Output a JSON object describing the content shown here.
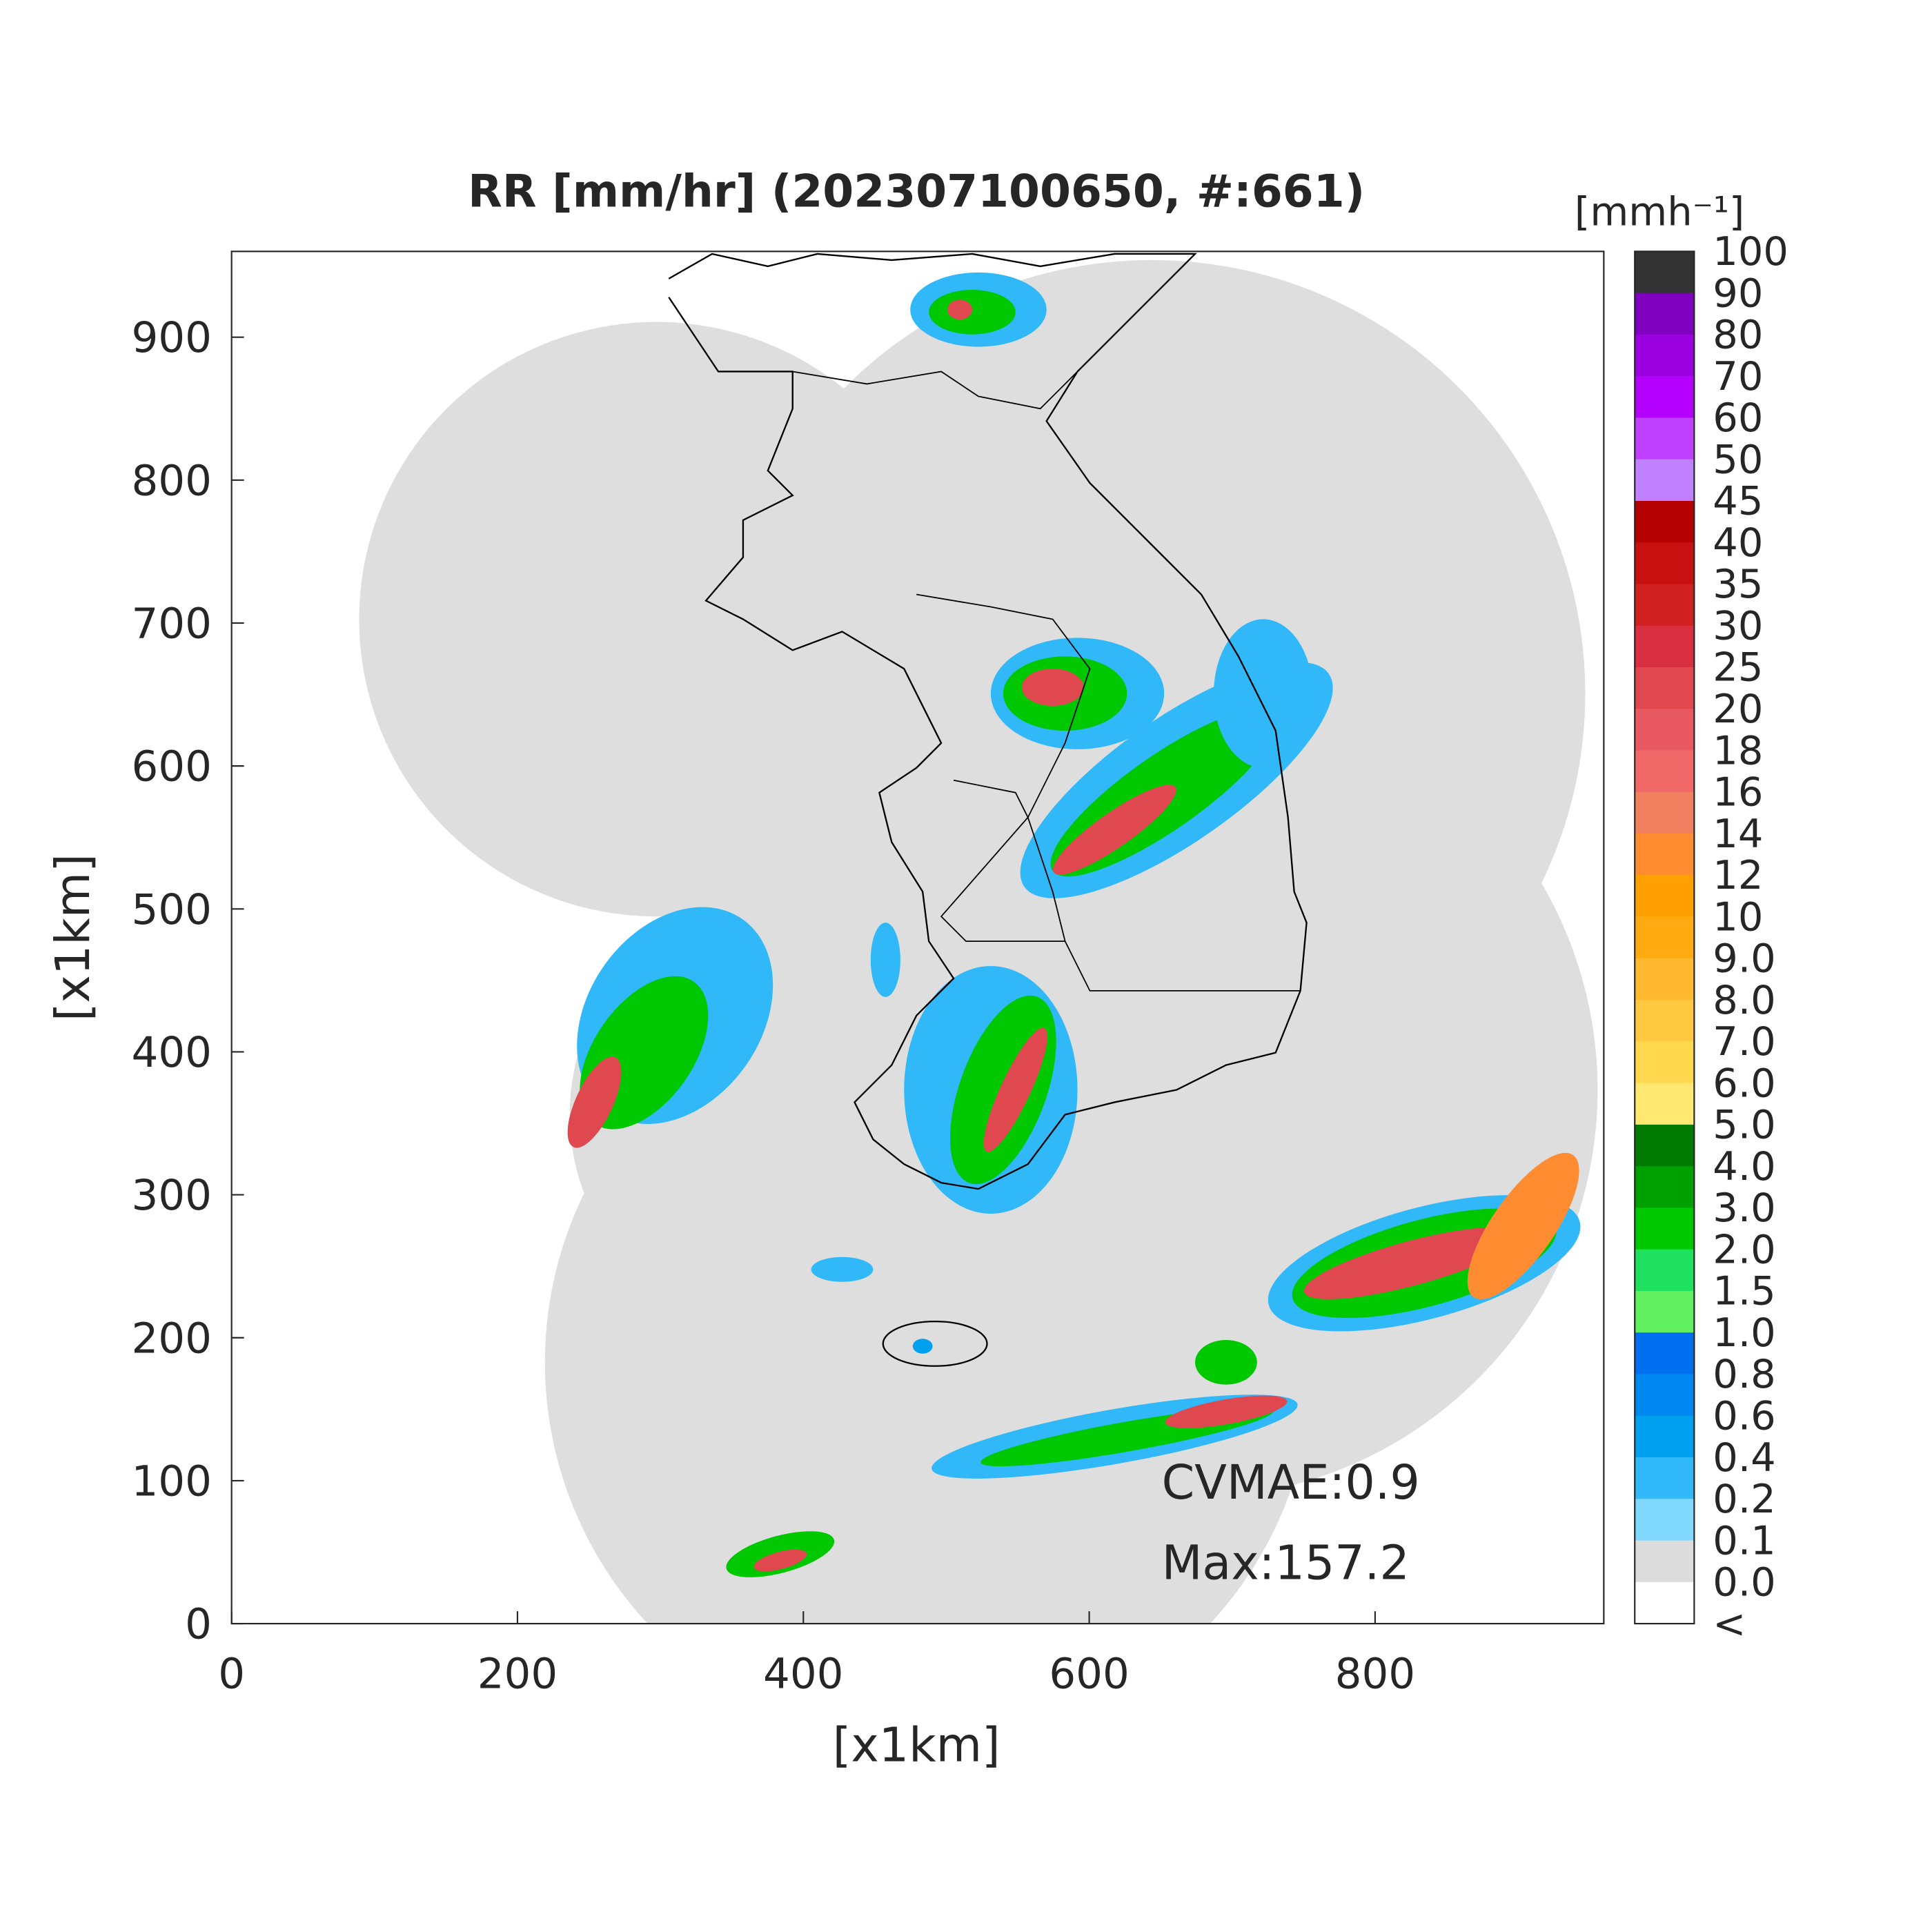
{
  "chart_data": {
    "type": "map",
    "title": "RR [mm/hr] (202307100650, #:661)",
    "xlabel": "[x1km]",
    "ylabel": "[x1km]",
    "xlim": [
      0,
      960
    ],
    "ylim": [
      0,
      960
    ],
    "xticks": [
      0,
      200,
      400,
      600,
      800
    ],
    "yticks": [
      0,
      100,
      200,
      300,
      400,
      500,
      600,
      700,
      800,
      900
    ],
    "annotations": [
      "CVMAE:0.9",
      "Max:157.2"
    ],
    "colorbar": {
      "title": "[mmh⁻¹]",
      "labels": [
        "100",
        "90",
        "80",
        "70",
        "60",
        "50",
        "45",
        "40",
        "35",
        "30",
        "25",
        "20",
        "18",
        "16",
        "14",
        "12",
        "10",
        "9.0",
        "8.0",
        "7.0",
        "6.0",
        "5.0",
        "4.0",
        "3.0",
        "2.0",
        "1.5",
        "1.0",
        "0.8",
        "0.6",
        "0.4",
        "0.2",
        "0.1",
        "0.0",
        "<"
      ],
      "colors": [
        "#333333",
        "#8000c0",
        "#9a00e0",
        "#b300ff",
        "#c040ff",
        "#c080ff",
        "#b40000",
        "#c81010",
        "#d02020",
        "#d83040",
        "#e04850",
        "#e85860",
        "#f06868",
        "#f08060",
        "#ff8c30",
        "#ffa000",
        "#ffaa10",
        "#ffb830",
        "#ffc840",
        "#ffd850",
        "#ffe870",
        "#007a00",
        "#00a000",
        "#00c800",
        "#20e060",
        "#60f060",
        "#0070f0",
        "#0088f0",
        "#00a0f0",
        "#30b8f8",
        "#80d8ff",
        "#dcdcdc",
        "#ffffff"
      ]
    }
  }
}
